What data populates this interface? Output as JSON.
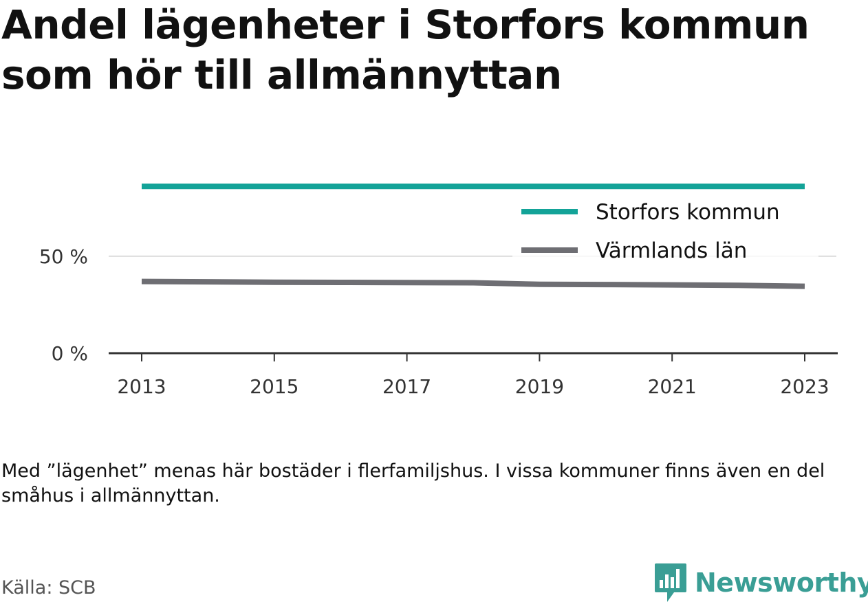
{
  "title": "Andel lägenheter i Storfors kommun som hör till allmännyttan",
  "note": "Med ”lägenhet” menas här bostäder i flerfamiljshus. I vissa kommuner finns även en del småhus i allmännyttan.",
  "source": "Källa: SCB",
  "brand": {
    "name": "Newsworthy",
    "icon": "bar-chart-speech-bubble-icon",
    "color": "#3a9e95"
  },
  "chart_data": {
    "type": "line",
    "x": [
      2013,
      2014,
      2015,
      2016,
      2017,
      2018,
      2019,
      2020,
      2021,
      2022,
      2023
    ],
    "x_ticks": [
      "2013",
      "2015",
      "2017",
      "2019",
      "2021",
      "2023"
    ],
    "y_ticks": [
      {
        "value": 0,
        "label": "0 %"
      },
      {
        "value": 50,
        "label": "50 %"
      }
    ],
    "ylim": [
      0,
      90
    ],
    "grid": true,
    "legend_placement": "top-right",
    "series": [
      {
        "name": "Storfors kommun",
        "color": "#13a398",
        "values": [
          86,
          86,
          86,
          86,
          86,
          86,
          86,
          86,
          86,
          86,
          86
        ]
      },
      {
        "name": "Värmlands län",
        "color": "#6e6e73",
        "values": [
          37,
          36.8,
          36.6,
          36.5,
          36.4,
          36.3,
          35.5,
          35.4,
          35.2,
          35,
          34.5
        ]
      }
    ]
  }
}
